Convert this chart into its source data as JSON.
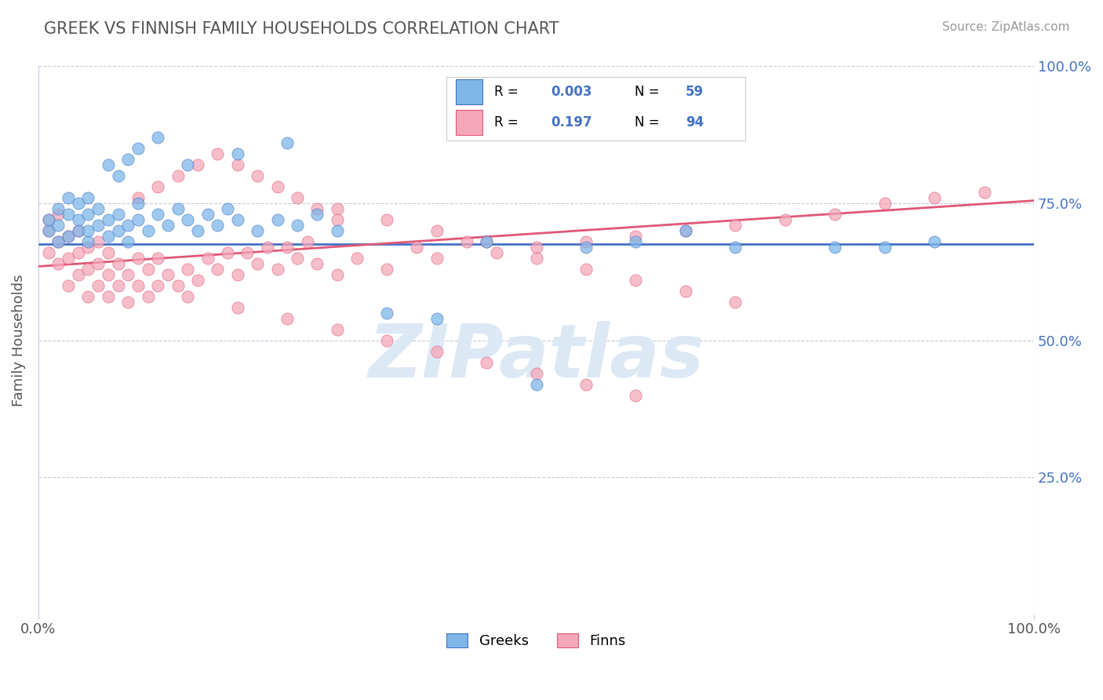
{
  "title": "GREEK VS FINNISH FAMILY HOUSEHOLDS CORRELATION CHART",
  "source": "Source: ZipAtlas.com",
  "ylabel": "Family Households",
  "greek_color": "#7eb6e8",
  "finn_color": "#f4a7b9",
  "greek_line_color": "#4472c4",
  "finn_line_color": "#e05878",
  "blue_text_color": "#4472c4",
  "background_color": "#ffffff",
  "grid_color": "#c8c8dc",
  "watermark_color": "#dde8f5",
  "title_color": "#555555",
  "source_color": "#999999",
  "ylabel_color": "#555555",
  "tick_color_x": "#555555",
  "tick_color_y": "#4472c4",
  "legend_border_color": "#cccccc",
  "greek_line_y0": 0.675,
  "greek_line_y1": 0.675,
  "finn_line_y0": 0.635,
  "finn_line_y1": 0.755,
  "xlim": [
    0,
    1
  ],
  "ylim": [
    0,
    1
  ],
  "greeks_x": [
    0.01,
    0.01,
    0.02,
    0.02,
    0.02,
    0.03,
    0.03,
    0.03,
    0.04,
    0.04,
    0.04,
    0.05,
    0.05,
    0.05,
    0.05,
    0.06,
    0.06,
    0.07,
    0.07,
    0.08,
    0.08,
    0.09,
    0.09,
    0.1,
    0.1,
    0.11,
    0.12,
    0.13,
    0.14,
    0.15,
    0.16,
    0.17,
    0.18,
    0.19,
    0.2,
    0.22,
    0.24,
    0.26,
    0.28,
    0.3,
    0.35,
    0.4,
    0.45,
    0.5,
    0.55,
    0.6,
    0.65,
    0.7,
    0.8,
    0.85,
    0.9,
    0.15,
    0.2,
    0.25,
    0.07,
    0.08,
    0.09,
    0.1,
    0.12
  ],
  "greeks_y": [
    0.7,
    0.72,
    0.68,
    0.71,
    0.74,
    0.69,
    0.73,
    0.76,
    0.7,
    0.72,
    0.75,
    0.68,
    0.7,
    0.73,
    0.76,
    0.71,
    0.74,
    0.69,
    0.72,
    0.7,
    0.73,
    0.68,
    0.71,
    0.72,
    0.75,
    0.7,
    0.73,
    0.71,
    0.74,
    0.72,
    0.7,
    0.73,
    0.71,
    0.74,
    0.72,
    0.7,
    0.72,
    0.71,
    0.73,
    0.7,
    0.55,
    0.54,
    0.68,
    0.42,
    0.67,
    0.68,
    0.7,
    0.67,
    0.67,
    0.67,
    0.68,
    0.82,
    0.84,
    0.86,
    0.82,
    0.8,
    0.83,
    0.85,
    0.87
  ],
  "finns_x": [
    0.01,
    0.01,
    0.01,
    0.02,
    0.02,
    0.02,
    0.03,
    0.03,
    0.03,
    0.04,
    0.04,
    0.04,
    0.05,
    0.05,
    0.05,
    0.06,
    0.06,
    0.06,
    0.07,
    0.07,
    0.07,
    0.08,
    0.08,
    0.09,
    0.09,
    0.1,
    0.1,
    0.11,
    0.11,
    0.12,
    0.12,
    0.13,
    0.14,
    0.15,
    0.15,
    0.16,
    0.17,
    0.18,
    0.19,
    0.2,
    0.21,
    0.22,
    0.23,
    0.24,
    0.25,
    0.26,
    0.27,
    0.28,
    0.3,
    0.32,
    0.35,
    0.38,
    0.4,
    0.43,
    0.46,
    0.5,
    0.55,
    0.6,
    0.65,
    0.7,
    0.75,
    0.8,
    0.85,
    0.9,
    0.95,
    0.3,
    0.35,
    0.4,
    0.45,
    0.5,
    0.55,
    0.6,
    0.65,
    0.7,
    0.1,
    0.12,
    0.14,
    0.16,
    0.18,
    0.2,
    0.22,
    0.24,
    0.26,
    0.28,
    0.3,
    0.2,
    0.25,
    0.3,
    0.35,
    0.4,
    0.45,
    0.5,
    0.55,
    0.6
  ],
  "finns_y": [
    0.7,
    0.66,
    0.72,
    0.64,
    0.68,
    0.73,
    0.6,
    0.65,
    0.69,
    0.62,
    0.66,
    0.7,
    0.58,
    0.63,
    0.67,
    0.6,
    0.64,
    0.68,
    0.58,
    0.62,
    0.66,
    0.6,
    0.64,
    0.57,
    0.62,
    0.6,
    0.65,
    0.58,
    0.63,
    0.6,
    0.65,
    0.62,
    0.6,
    0.58,
    0.63,
    0.61,
    0.65,
    0.63,
    0.66,
    0.62,
    0.66,
    0.64,
    0.67,
    0.63,
    0.67,
    0.65,
    0.68,
    0.64,
    0.62,
    0.65,
    0.63,
    0.67,
    0.65,
    0.68,
    0.66,
    0.67,
    0.68,
    0.69,
    0.7,
    0.71,
    0.72,
    0.73,
    0.75,
    0.76,
    0.77,
    0.74,
    0.72,
    0.7,
    0.68,
    0.65,
    0.63,
    0.61,
    0.59,
    0.57,
    0.76,
    0.78,
    0.8,
    0.82,
    0.84,
    0.82,
    0.8,
    0.78,
    0.76,
    0.74,
    0.72,
    0.56,
    0.54,
    0.52,
    0.5,
    0.48,
    0.46,
    0.44,
    0.42,
    0.4
  ]
}
